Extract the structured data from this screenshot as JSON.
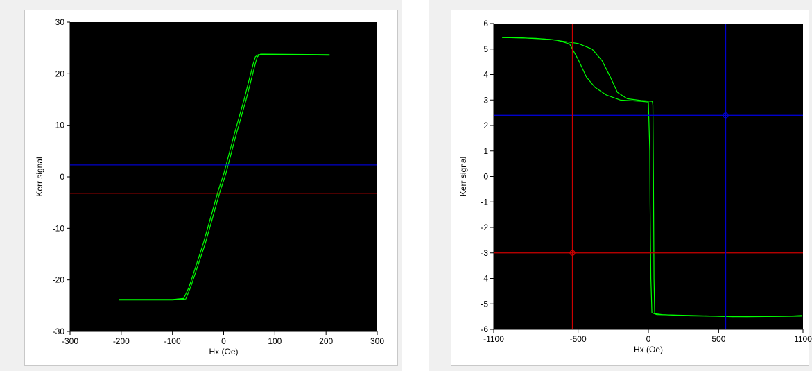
{
  "chart_data": [
    {
      "type": "line",
      "xlabel": "Hx (Oe)",
      "ylabel": "Kerr signal",
      "xlim": [
        -300,
        300
      ],
      "ylim": [
        -30,
        30
      ],
      "xticks": [
        -300,
        -200,
        -100,
        0,
        100,
        200,
        300
      ],
      "yticks": [
        -30,
        -20,
        -10,
        0,
        10,
        20,
        30
      ],
      "background": "#000000",
      "series": [
        {
          "color": "#00ff00",
          "points": [
            [
              -205,
              -23.8
            ],
            [
              -100,
              -23.8
            ],
            [
              -78,
              -23.6
            ],
            [
              -68,
              -21.5
            ],
            [
              -40,
              -13
            ],
            [
              -10,
              -2.5
            ],
            [
              0,
              0.5
            ],
            [
              20,
              8
            ],
            [
              40,
              15
            ],
            [
              58,
              22
            ],
            [
              62,
              23.3
            ],
            [
              68,
              23.7
            ],
            [
              120,
              23.7
            ],
            [
              207,
              23.6
            ]
          ]
        },
        {
          "color": "#00ff00",
          "points": [
            [
              -205,
              -23.9
            ],
            [
              -100,
              -23.9
            ],
            [
              -74,
              -23.7
            ],
            [
              -64,
              -21.3
            ],
            [
              -36,
              -13
            ],
            [
              -6,
              -2.5
            ],
            [
              4,
              0.5
            ],
            [
              24,
              8
            ],
            [
              44,
              15
            ],
            [
              62,
              22
            ],
            [
              66,
              23.3
            ],
            [
              72,
              23.8
            ],
            [
              207,
              23.7
            ]
          ]
        }
      ],
      "hlines": [
        {
          "y": 2.3,
          "color": "#0000cc"
        },
        {
          "y": -3.2,
          "color": "#cc0000"
        }
      ],
      "vlines": [],
      "markers": []
    },
    {
      "type": "line",
      "xlabel": "Hx (Oe)",
      "ylabel": "Kerr signal",
      "xlim": [
        -1100,
        1100
      ],
      "ylim": [
        -6,
        6
      ],
      "xticks": [
        -1100,
        -500,
        0,
        500,
        1100
      ],
      "yticks": [
        -6,
        -5,
        -4,
        -3,
        -2,
        -1,
        0,
        1,
        2,
        3,
        4,
        5,
        6
      ],
      "background": "#000000",
      "series": [
        {
          "color": "#00ff00",
          "points": [
            [
              -1040,
              5.45
            ],
            [
              -800,
              5.42
            ],
            [
              -650,
              5.35
            ],
            [
              -560,
              5.2
            ],
            [
              -500,
              4.6
            ],
            [
              -440,
              3.9
            ],
            [
              -380,
              3.5
            ],
            [
              -300,
              3.2
            ],
            [
              -200,
              3.0
            ],
            [
              -50,
              2.95
            ],
            [
              0,
              2.92
            ],
            [
              10,
              1.0
            ],
            [
              12,
              -1.0
            ],
            [
              18,
              -4.0
            ],
            [
              25,
              -5.35
            ],
            [
              60,
              -5.42
            ],
            [
              300,
              -5.45
            ],
            [
              600,
              -5.5
            ],
            [
              1000,
              -5.48
            ],
            [
              1090,
              -5.45
            ]
          ]
        },
        {
          "color": "#00ff00",
          "points": [
            [
              1090,
              -5.48
            ],
            [
              700,
              -5.5
            ],
            [
              300,
              -5.47
            ],
            [
              100,
              -5.42
            ],
            [
              45,
              -5.38
            ],
            [
              40,
              -4.0
            ],
            [
              36,
              0.0
            ],
            [
              32,
              2.8
            ],
            [
              28,
              2.95
            ],
            [
              -50,
              2.98
            ],
            [
              -150,
              3.05
            ],
            [
              -220,
              3.3
            ],
            [
              -270,
              3.9
            ],
            [
              -330,
              4.55
            ],
            [
              -400,
              5.0
            ],
            [
              -500,
              5.22
            ],
            [
              -700,
              5.38
            ],
            [
              -900,
              5.44
            ],
            [
              -1040,
              5.45
            ]
          ]
        }
      ],
      "hlines": [
        {
          "y": 2.4,
          "color": "#0000cc"
        },
        {
          "y": -3.0,
          "color": "#cc0000"
        }
      ],
      "vlines": [
        {
          "x": -540,
          "color": "#cc0000"
        },
        {
          "x": 550,
          "color": "#0000cc"
        }
      ],
      "markers": [
        {
          "x": -540,
          "y": -3.0,
          "color": "#cc0000"
        },
        {
          "x": 550,
          "y": 2.4,
          "color": "#0000cc"
        }
      ]
    }
  ]
}
